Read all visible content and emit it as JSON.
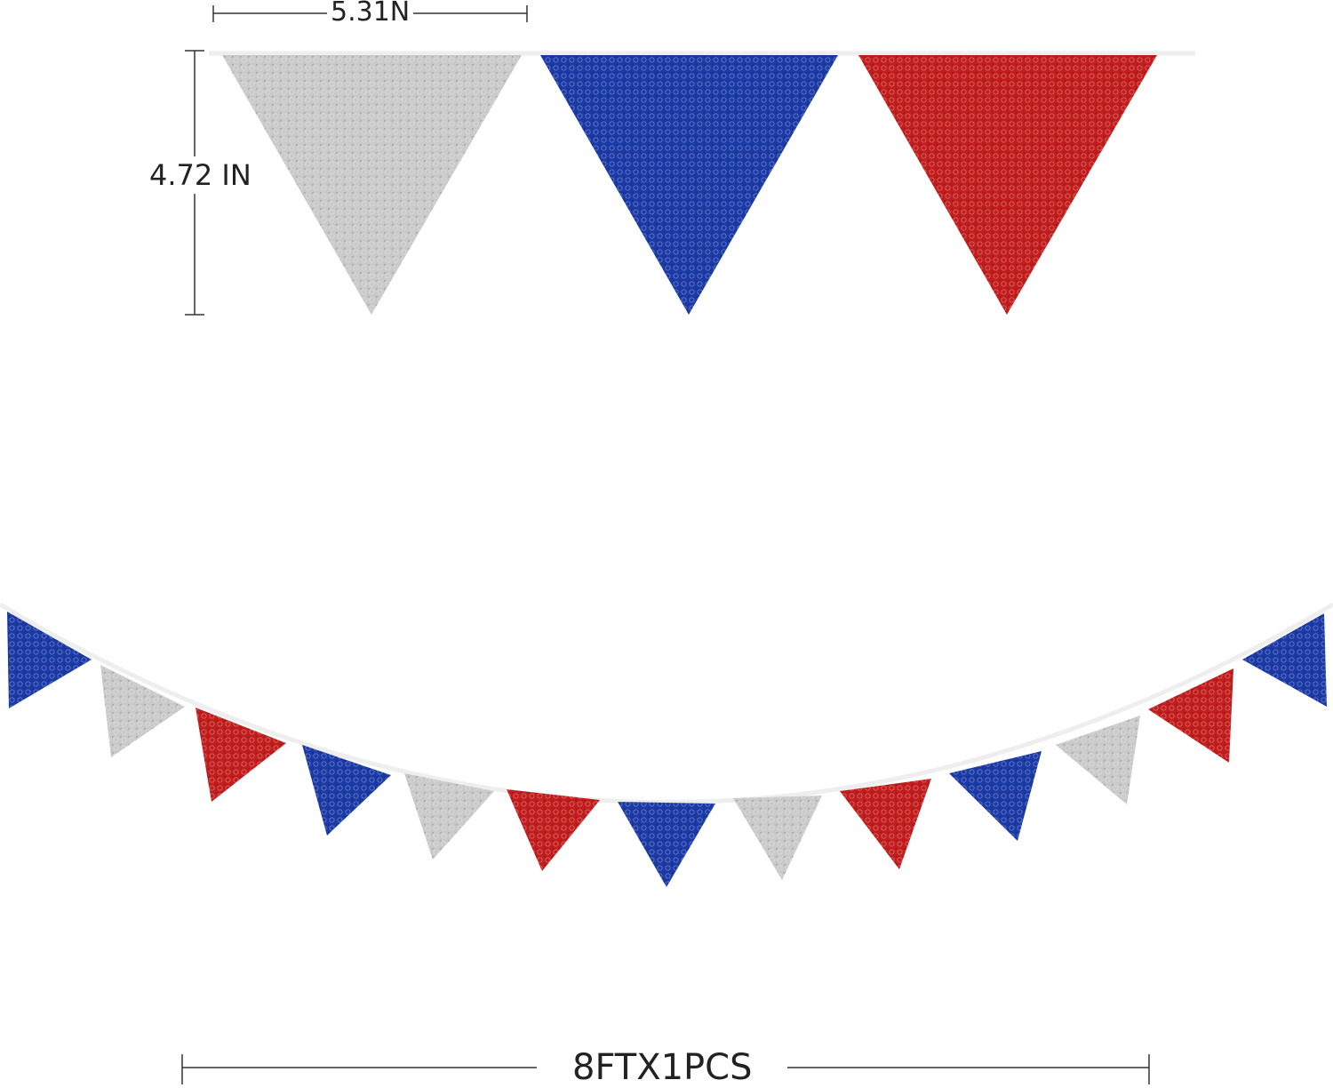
{
  "dimensions": {
    "width_label": "5.31N",
    "height_label": "4.72 IN",
    "length_label": "8FTX1PCS"
  },
  "colors": {
    "silver": "#c9c9c9",
    "blue": "#1b3aa6",
    "red": "#c21d1d",
    "dimension_line": "#333333"
  },
  "detail_pennants": [
    "silver",
    "blue",
    "red"
  ],
  "garland_pennants": [
    "blue",
    "silver",
    "red",
    "blue",
    "silver",
    "red",
    "blue",
    "silver",
    "red",
    "blue",
    "silver",
    "red",
    "blue"
  ]
}
